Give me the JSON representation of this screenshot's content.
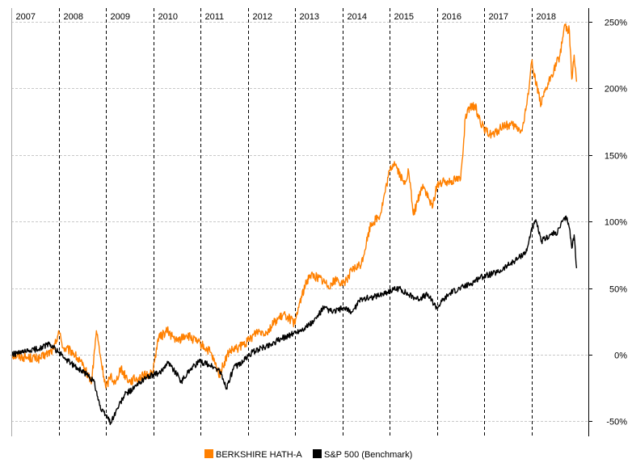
{
  "chart_data": {
    "type": "line",
    "title": "",
    "xlabel": "",
    "ylabel": "",
    "x_tick_labels": [
      "2007",
      "2008",
      "2009",
      "2010",
      "2011",
      "2012",
      "2013",
      "2014",
      "2015",
      "2016",
      "2017",
      "2018"
    ],
    "y_tick_labels": [
      "250%",
      "200%",
      "150%",
      "100%",
      "50%",
      "0%",
      "-50%"
    ],
    "x_range": [
      2007.0,
      2019.2
    ],
    "ylim": [
      -55,
      262
    ],
    "grid": true,
    "legend_position": "bottom-center",
    "series": [
      {
        "name": "BERKSHIRE HATH-A",
        "color": "#ff8000",
        "x": [
          2007.0,
          2007.3,
          2007.6,
          2007.9,
          2008.0,
          2008.1,
          2008.3,
          2008.5,
          2008.7,
          2008.8,
          2008.9,
          2009.0,
          2009.1,
          2009.2,
          2009.3,
          2009.5,
          2009.7,
          2009.9,
          2010.0,
          2010.1,
          2010.3,
          2010.5,
          2010.7,
          2010.9,
          2011.0,
          2011.2,
          2011.4,
          2011.6,
          2011.8,
          2012.0,
          2012.2,
          2012.4,
          2012.6,
          2012.8,
          2013.0,
          2013.1,
          2013.3,
          2013.5,
          2013.7,
          2013.9,
          2014.0,
          2014.2,
          2014.4,
          2014.6,
          2014.8,
          2015.0,
          2015.1,
          2015.3,
          2015.4,
          2015.5,
          2015.7,
          2015.9,
          2016.0,
          2016.2,
          2016.4,
          2016.5,
          2016.6,
          2016.7,
          2016.8,
          2017.0,
          2017.2,
          2017.4,
          2017.6,
          2017.8,
          2017.9,
          2018.0,
          2018.2,
          2018.4,
          2018.6,
          2018.7,
          2018.8,
          2018.85,
          2018.9,
          2018.95
        ],
        "values": [
          0,
          -2,
          -3,
          4,
          18,
          5,
          2,
          -8,
          -20,
          18,
          -5,
          -25,
          -15,
          -22,
          -10,
          -20,
          -17,
          -15,
          -12,
          12,
          18,
          10,
          15,
          10,
          8,
          2,
          -15,
          2,
          5,
          10,
          18,
          17,
          26,
          30,
          23,
          40,
          60,
          58,
          52,
          57,
          52,
          63,
          68,
          98,
          105,
          138,
          145,
          128,
          138,
          105,
          128,
          110,
          128,
          130,
          132,
          132,
          178,
          185,
          187,
          168,
          165,
          172,
          172,
          168,
          188,
          220,
          188,
          208,
          225,
          248,
          243,
          207,
          225,
          205
        ]
      },
      {
        "name": "S&P 500  (Benchmark)",
        "color": "#000000",
        "x": [
          2007.0,
          2007.3,
          2007.6,
          2007.8,
          2008.0,
          2008.2,
          2008.4,
          2008.6,
          2008.75,
          2008.9,
          2009.0,
          2009.1,
          2009.25,
          2009.4,
          2009.6,
          2009.8,
          2010.0,
          2010.15,
          2010.3,
          2010.45,
          2010.6,
          2010.8,
          2011.0,
          2011.2,
          2011.4,
          2011.55,
          2011.7,
          2011.9,
          2012.1,
          2012.3,
          2012.5,
          2012.7,
          2012.9,
          2013.2,
          2013.4,
          2013.6,
          2013.8,
          2014.0,
          2014.2,
          2014.4,
          2014.6,
          2014.8,
          2015.0,
          2015.2,
          2015.4,
          2015.6,
          2015.8,
          2016.0,
          2016.1,
          2016.3,
          2016.5,
          2016.7,
          2016.9,
          2017.1,
          2017.3,
          2017.5,
          2017.7,
          2017.9,
          2018.0,
          2018.1,
          2018.2,
          2018.4,
          2018.55,
          2018.65,
          2018.75,
          2018.8,
          2018.85,
          2018.9,
          2018.95
        ],
        "values": [
          0,
          2,
          5,
          8,
          2,
          -5,
          -10,
          -15,
          -20,
          -42,
          -45,
          -51,
          -40,
          -30,
          -25,
          -18,
          -15,
          -14,
          -5,
          -12,
          -20,
          -10,
          -5,
          -8,
          -12,
          -25,
          -10,
          -5,
          2,
          5,
          8,
          12,
          15,
          20,
          25,
          35,
          32,
          35,
          32,
          42,
          43,
          45,
          48,
          50,
          45,
          42,
          45,
          35,
          40,
          47,
          50,
          53,
          58,
          60,
          62,
          67,
          72,
          78,
          95,
          100,
          85,
          90,
          92,
          100,
          103,
          95,
          80,
          90,
          65
        ]
      }
    ]
  },
  "legend": [
    {
      "label": "BERKSHIRE HATH-A",
      "color": "#ff8000"
    },
    {
      "label": "S&P 500  (Benchmark)",
      "color": "#000000"
    }
  ]
}
